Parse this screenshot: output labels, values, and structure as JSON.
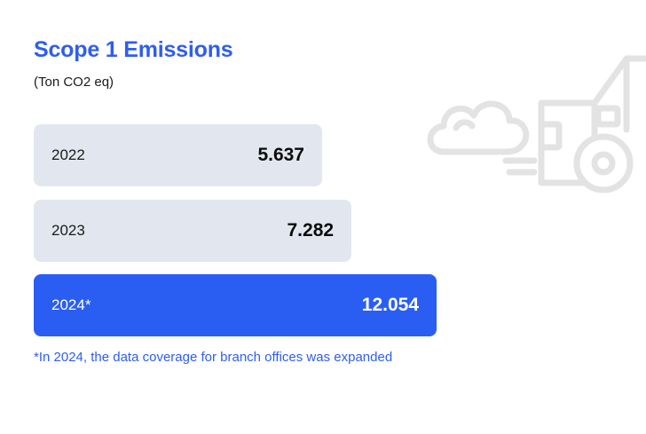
{
  "chart_data": {
    "type": "bar",
    "orientation": "horizontal",
    "title": "Scope 1 Emissions",
    "subtitle": "(Ton CO2 eq)",
    "categories": [
      "2022",
      "2023",
      "2024*"
    ],
    "values": [
      5.637,
      7.282,
      12.054
    ],
    "value_labels": [
      "5.637",
      "7.282",
      "12.054"
    ],
    "highlight_index": 2,
    "footnote": "*In 2024, the data coverage for branch offices was expanded"
  },
  "colors": {
    "accent": "#2f5df0",
    "bar_highlight": "#2a5ef3",
    "bar_normal": "#e2e7ef",
    "illustration": "#e3e3e3"
  },
  "decoration": {
    "icon": "emission-truck-icon"
  }
}
